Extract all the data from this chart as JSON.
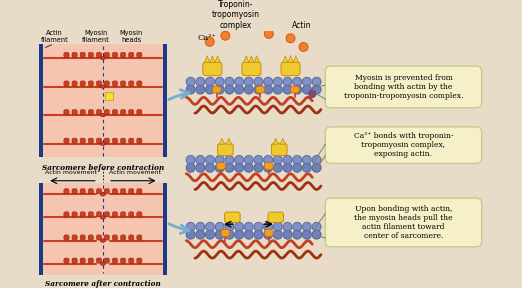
{
  "bg_color": "#f5e6c8",
  "title": "",
  "annotations": {
    "box1": "Myosin is prevented from\nbonding with actin by the\ntroponin-tropomyosin complex.",
    "box2": "Ca²⁺ bonds with troponin-\ntropomyosin complex,\nexposing actin.",
    "box3": "Upon bonding with actin,\nthe myosin heads pull the\nactin filament toward\ncenter of sarcomere.",
    "label_actin_filament": "Actin\nfilament",
    "label_myosin_filament": "Myosin\nfilament",
    "label_myosin_heads": "Myosin\nheads",
    "label_troponin": "Troponin-\ntropomyosin\ncomplex",
    "label_actin": "Actin",
    "label_ca": "Ca²⁺",
    "label_sarcomere_before": "Sarcomere before contraction",
    "label_sarcomere_after": "Sarcomere after contraction",
    "label_actin_movement_left": "Actin movement",
    "label_actin_movement_right": "Actin movement"
  },
  "colors": {
    "sarcomere_bg": "#f5c5b0",
    "sarcomere_border": "#1a3a8c",
    "myosin_filament": "#c84020",
    "actin_filament": "#c84020",
    "myosin_head_fill": "#f0a020",
    "troponin_fill": "#f0c830",
    "actin_bead": "#8090c8",
    "text_box_bg": "#f5f0c8",
    "text_box_border": "#c8c890",
    "arrow_fill": "#7aaccc",
    "ca_ion": "#f08030",
    "purple_dot": "#804878"
  }
}
